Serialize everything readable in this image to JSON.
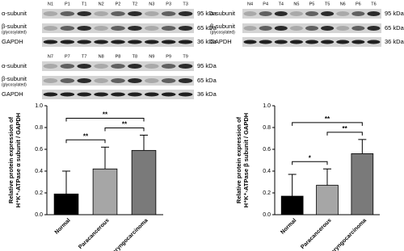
{
  "blots": [
    {
      "lanes": [
        "N1",
        "P1",
        "T1",
        "N2",
        "P2",
        "T2",
        "N3",
        "P3",
        "T3"
      ],
      "rows": [
        {
          "label": "α-subunit",
          "kda": "95 kDa"
        },
        {
          "label": "β-subunit",
          "sublabel": "(glycosylated)",
          "kda": "65 kDa"
        },
        {
          "label": "GAPDH",
          "kda": "36 kDa"
        }
      ]
    },
    {
      "lanes": [
        "N4",
        "P4",
        "T4",
        "N5",
        "P5",
        "T5",
        "N6",
        "P6",
        "T6"
      ],
      "rows": [
        {
          "label": "α-subunit",
          "kda": "95 kDa"
        },
        {
          "label": "β-subunit",
          "sublabel": "(glycosylated)",
          "kda": "65 kDa"
        },
        {
          "label": "GAPDH",
          "kda": "36 kDa"
        }
      ]
    },
    {
      "lanes": [
        "N7",
        "P7",
        "T7",
        "N8",
        "P8",
        "T8",
        "N9",
        "P9",
        "T9"
      ],
      "rows": [
        {
          "label": "α-subunit",
          "kda": "95 kDa"
        },
        {
          "label": "β-subunit",
          "sublabel": "(glycosylated)",
          "kda": "65 kDa"
        },
        {
          "label": "GAPDH",
          "kda": "36 kDa"
        }
      ]
    }
  ],
  "chart_data": [
    {
      "type": "bar",
      "y_label": [
        "Relative protein expression of",
        "H⁺K⁺-ATPase α subunit / GAPDH"
      ],
      "categories": [
        "Normal",
        "Paracancerous",
        "Laryngocarcinoma"
      ],
      "values": [
        0.19,
        0.42,
        0.59
      ],
      "errors": [
        0.21,
        0.2,
        0.14
      ],
      "colors": [
        "#000000",
        "#a6a6a6",
        "#7a7a7a"
      ],
      "ylim": [
        0,
        1.0
      ],
      "yticks": [
        {
          "value": 0,
          "label": "0.0"
        },
        0.2,
        0.4,
        0.6,
        0.8,
        {
          "value": 1.0,
          "label": "1.0"
        }
      ],
      "annotations": [
        {
          "text": "**",
          "between": [
            "Normal",
            "Paracancerous"
          ]
        },
        {
          "text": "**",
          "between": [
            "Paracancerous",
            "Laryngocarcinoma"
          ]
        },
        {
          "text": "**",
          "between": [
            "Normal",
            "Laryngocarcinoma"
          ]
        }
      ]
    },
    {
      "type": "bar",
      "y_label": [
        "Relative protein expression of",
        "H⁺K⁺-ATPase β subunit / GAPDH"
      ],
      "categories": [
        "Normal",
        "Paracancerous",
        "Laryngocarcinoma"
      ],
      "values": [
        0.17,
        0.27,
        0.56
      ],
      "errors": [
        0.2,
        0.15,
        0.13
      ],
      "colors": [
        "#000000",
        "#a6a6a6",
        "#7a7a7a"
      ],
      "ylim": [
        0,
        1.0
      ],
      "yticks": [
        {
          "value": 0,
          "label": "0.0"
        },
        0.2,
        0.4,
        0.6,
        0.8,
        {
          "value": 1.0,
          "label": "1.0"
        }
      ],
      "annotations": [
        {
          "text": "*",
          "between": [
            "Normal",
            "Paracancerous"
          ]
        },
        {
          "text": "**",
          "between": [
            "Paracancerous",
            "Laryngocarcinoma"
          ]
        },
        {
          "text": "**",
          "between": [
            "Normal",
            "Laryngocarcinoma"
          ]
        }
      ]
    }
  ]
}
